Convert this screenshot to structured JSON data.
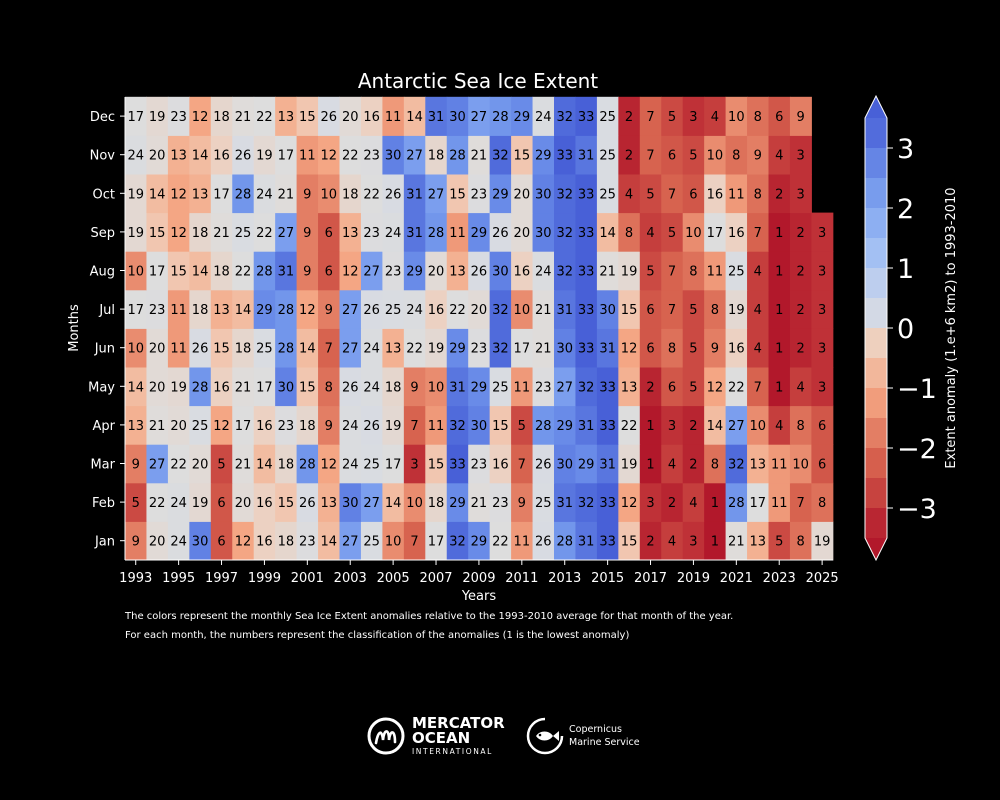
{
  "chart_data": {
    "type": "heatmap",
    "title": "Antarctic Sea Ice Extent",
    "xlabel": "Years",
    "ylabel": "Months",
    "colorbar_label": "Extent anomaly (1.e+6 km2) to 1993-2010",
    "colorbar_ticks": [
      "3",
      "2",
      "1",
      "0",
      "−1",
      "−2",
      "−3"
    ],
    "colorbar_range": [
      -3.5,
      3.5
    ],
    "years": [
      1993,
      1994,
      1995,
      1996,
      1997,
      1998,
      1999,
      2000,
      2001,
      2002,
      2003,
      2004,
      2005,
      2006,
      2007,
      2008,
      2009,
      2010,
      2011,
      2012,
      2013,
      2014,
      2015,
      2016,
      2017,
      2018,
      2019,
      2020,
      2021,
      2022,
      2023,
      2024,
      2025
    ],
    "year_ticks": [
      "1993",
      "1995",
      "1997",
      "1999",
      "2001",
      "2003",
      "2005",
      "2007",
      "2009",
      "2011",
      "2013",
      "2015",
      "2017",
      "2019",
      "2021",
      "2023",
      "2025"
    ],
    "months": [
      "Jan",
      "Feb",
      "Mar",
      "Apr",
      "May",
      "Jun",
      "Jul",
      "Aug",
      "Sep",
      "Oct",
      "Nov",
      "Dec"
    ],
    "ranks": {
      "Jan": [
        9,
        20,
        24,
        30,
        6,
        12,
        16,
        18,
        23,
        14,
        27,
        25,
        10,
        7,
        17,
        32,
        29,
        22,
        11,
        26,
        28,
        31,
        33,
        15,
        2,
        4,
        3,
        1,
        21,
        13,
        5,
        8,
        19
      ],
      "Feb": [
        5,
        22,
        24,
        19,
        6,
        20,
        16,
        15,
        26,
        13,
        30,
        27,
        14,
        10,
        18,
        29,
        21,
        23,
        9,
        25,
        31,
        32,
        33,
        12,
        3,
        2,
        4,
        1,
        28,
        17,
        11,
        7,
        8
      ],
      "Mar": [
        9,
        27,
        22,
        20,
        5,
        21,
        14,
        18,
        28,
        12,
        24,
        25,
        17,
        3,
        15,
        33,
        23,
        16,
        7,
        26,
        30,
        29,
        31,
        19,
        1,
        4,
        2,
        8,
        32,
        13,
        11,
        10,
        6
      ],
      "Apr": [
        13,
        21,
        20,
        25,
        12,
        17,
        16,
        23,
        18,
        9,
        24,
        26,
        19,
        7,
        11,
        32,
        30,
        15,
        5,
        28,
        29,
        31,
        33,
        22,
        1,
        3,
        2,
        14,
        27,
        10,
        4,
        8,
        6
      ],
      "May": [
        14,
        20,
        19,
        28,
        16,
        21,
        17,
        30,
        15,
        8,
        26,
        24,
        18,
        9,
        10,
        31,
        29,
        25,
        11,
        23,
        27,
        32,
        33,
        13,
        2,
        6,
        5,
        12,
        22,
        7,
        1,
        4,
        3
      ],
      "Jun": [
        10,
        20,
        11,
        26,
        15,
        18,
        25,
        28,
        14,
        7,
        27,
        24,
        13,
        22,
        19,
        29,
        23,
        32,
        17,
        21,
        30,
        33,
        31,
        12,
        6,
        8,
        5,
        9,
        16,
        4,
        1,
        2,
        3
      ],
      "Jul": [
        17,
        23,
        11,
        18,
        13,
        14,
        29,
        28,
        12,
        9,
        27,
        26,
        25,
        24,
        16,
        22,
        20,
        32,
        10,
        21,
        31,
        33,
        30,
        15,
        6,
        7,
        5,
        8,
        19,
        4,
        1,
        2,
        3
      ],
      "Aug": [
        10,
        17,
        15,
        14,
        18,
        22,
        28,
        31,
        9,
        6,
        12,
        27,
        23,
        29,
        20,
        13,
        26,
        30,
        16,
        24,
        32,
        33,
        21,
        19,
        5,
        7,
        8,
        11,
        25,
        4,
        1,
        2,
        3
      ],
      "Sep": [
        19,
        15,
        12,
        18,
        21,
        25,
        22,
        27,
        9,
        6,
        13,
        23,
        24,
        31,
        28,
        11,
        29,
        26,
        20,
        30,
        32,
        33,
        14,
        8,
        4,
        5,
        10,
        17,
        16,
        7,
        1,
        2,
        3
      ],
      "Oct": [
        19,
        14,
        12,
        13,
        17,
        28,
        24,
        21,
        9,
        10,
        18,
        22,
        26,
        31,
        27,
        15,
        23,
        29,
        20,
        30,
        32,
        33,
        25,
        4,
        5,
        7,
        6,
        16,
        11,
        8,
        2,
        3,
        null
      ],
      "Nov": [
        24,
        20,
        13,
        14,
        16,
        26,
        19,
        17,
        11,
        12,
        22,
        23,
        30,
        27,
        18,
        28,
        21,
        32,
        15,
        29,
        33,
        31,
        25,
        2,
        7,
        6,
        5,
        10,
        8,
        9,
        4,
        3,
        null
      ],
      "Dec": [
        17,
        19,
        23,
        12,
        18,
        21,
        22,
        13,
        15,
        26,
        20,
        16,
        11,
        14,
        31,
        30,
        27,
        28,
        29,
        24,
        32,
        33,
        25,
        2,
        7,
        5,
        3,
        4,
        10,
        8,
        6,
        9,
        null
      ]
    }
  },
  "footer": {
    "note1": "The colors represent the monthly Sea Ice Extent anomalies relative to the 1993-2010 average for that month of the year.",
    "note2": "For each month, the numbers represent the classification of the anomalies (1 is the lowest anomaly)"
  },
  "logos": {
    "mercator": {
      "line1": "MERCATOR",
      "line2": "OCEAN",
      "line3": "INTERNATIONAL"
    },
    "copernicus": {
      "line1": "Copernicus",
      "line2": "Marine Service"
    }
  }
}
